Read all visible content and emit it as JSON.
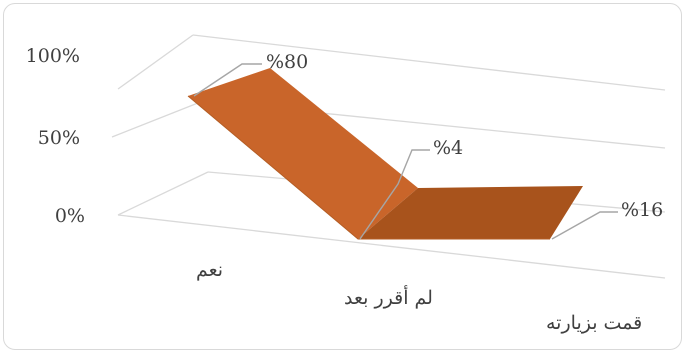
{
  "chart_data": {
    "type": "area",
    "style": "3d",
    "categories": [
      "نعم",
      "لم أقرر بعد",
      "قمت بزيارته"
    ],
    "values": [
      80,
      4,
      16
    ],
    "data_labels": [
      "%80",
      "%4",
      "%16"
    ],
    "ytick_labels": [
      "100%",
      "50%",
      "0%"
    ],
    "ylim": [
      0,
      100
    ],
    "grid": true,
    "legend": "none",
    "colors": {
      "face": "#c9652a",
      "top": "#b35d24",
      "floor": "#a8531c",
      "gridline": "#d9d9d9",
      "leader": "#a6a6a6",
      "text": "#404040"
    }
  }
}
